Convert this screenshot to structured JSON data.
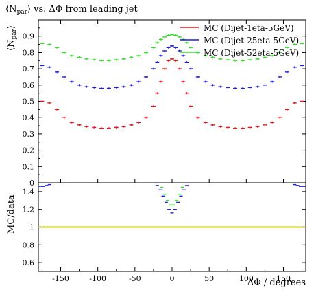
{
  "chart_data": [
    {
      "type": "line",
      "title_prefix": "⟨N",
      "title_sub": "par",
      "title_suffix": "⟩ vs. ΔΦ from leading jet",
      "ylabel_main": "⟨N",
      "ylabel_sub": "par",
      "ylabel_end": "⟩",
      "xlim": [
        -180,
        180
      ],
      "ylim": [
        0.0,
        1.0
      ],
      "yticks": [
        "0",
        "0.1",
        "0.2",
        "0.3",
        "0.4",
        "0.5",
        "0.6",
        "0.7",
        "0.8",
        "0.9"
      ],
      "legend_position": "top-right",
      "x": [
        -175,
        -165,
        -155,
        -145,
        -135,
        -125,
        -115,
        -105,
        -95,
        -85,
        -75,
        -65,
        -55,
        -45,
        -35,
        -25,
        -20,
        -15,
        -10,
        -5,
        0,
        5,
        10,
        15,
        20,
        25,
        35,
        45,
        55,
        65,
        75,
        85,
        95,
        105,
        115,
        125,
        135,
        145,
        155,
        165,
        175
      ],
      "series": [
        {
          "name": "MC (Dijet-1eta-5GeV)",
          "color": "#e8161c",
          "values": [
            0.5,
            0.49,
            0.45,
            0.4,
            0.37,
            0.355,
            0.345,
            0.34,
            0.335,
            0.335,
            0.34,
            0.345,
            0.355,
            0.37,
            0.4,
            0.47,
            0.55,
            0.62,
            0.7,
            0.75,
            0.76,
            0.75,
            0.7,
            0.62,
            0.55,
            0.47,
            0.4,
            0.37,
            0.355,
            0.345,
            0.34,
            0.335,
            0.335,
            0.34,
            0.345,
            0.355,
            0.37,
            0.4,
            0.45,
            0.49,
            0.5
          ]
        },
        {
          "name": "MC (Dijet-25eta-5GeV)",
          "color": "#1d1ee0",
          "values": [
            0.72,
            0.71,
            0.68,
            0.65,
            0.62,
            0.6,
            0.59,
            0.585,
            0.58,
            0.58,
            0.585,
            0.59,
            0.6,
            0.62,
            0.65,
            0.7,
            0.74,
            0.78,
            0.81,
            0.83,
            0.84,
            0.83,
            0.81,
            0.78,
            0.74,
            0.7,
            0.65,
            0.62,
            0.6,
            0.59,
            0.585,
            0.58,
            0.58,
            0.585,
            0.59,
            0.6,
            0.62,
            0.65,
            0.68,
            0.71,
            0.72
          ]
        },
        {
          "name": "MC (Dijet-52eta-5GeV)",
          "color": "#2fe022",
          "values": [
            0.855,
            0.85,
            0.83,
            0.8,
            0.78,
            0.77,
            0.76,
            0.755,
            0.75,
            0.75,
            0.755,
            0.76,
            0.77,
            0.78,
            0.8,
            0.83,
            0.86,
            0.88,
            0.895,
            0.905,
            0.91,
            0.905,
            0.895,
            0.88,
            0.86,
            0.83,
            0.8,
            0.78,
            0.77,
            0.76,
            0.755,
            0.75,
            0.75,
            0.755,
            0.76,
            0.77,
            0.78,
            0.8,
            0.83,
            0.85,
            0.855
          ]
        }
      ]
    },
    {
      "type": "line",
      "ylabel": "MC/data",
      "xlabel": "ΔΦ / degrees",
      "xlim": [
        -180,
        180
      ],
      "ylim": [
        0.5,
        1.5
      ],
      "xticks": [
        "-150",
        "-100",
        "-50",
        "0",
        "50",
        "100",
        "150"
      ],
      "yticks": [
        "0.6",
        "0.8",
        "1",
        "1.2",
        "1.4"
      ],
      "reference_line": 1.0,
      "reference_color": "#c8c800",
      "series": [
        {
          "name": "MC (Dijet-25eta-5GeV)",
          "color": "#1d1ee0",
          "x": [
            -177,
            -173,
            -169,
            -165,
            -20,
            -16,
            -12,
            -8,
            -4,
            0,
            4,
            8,
            12,
            16,
            20,
            165,
            169,
            173,
            177
          ],
          "values": [
            1.46,
            1.46,
            1.47,
            1.48,
            1.47,
            1.42,
            1.35,
            1.28,
            1.2,
            1.16,
            1.2,
            1.28,
            1.35,
            1.42,
            1.47,
            1.48,
            1.47,
            1.46,
            1.46
          ]
        },
        {
          "name": "MC (Dijet-52eta-5GeV)",
          "color": "#2fe022",
          "x": [
            -14,
            -10,
            -6,
            -2,
            2,
            6,
            10,
            14
          ],
          "values": [
            1.45,
            1.37,
            1.3,
            1.25,
            1.25,
            1.3,
            1.37,
            1.45
          ]
        }
      ]
    }
  ]
}
